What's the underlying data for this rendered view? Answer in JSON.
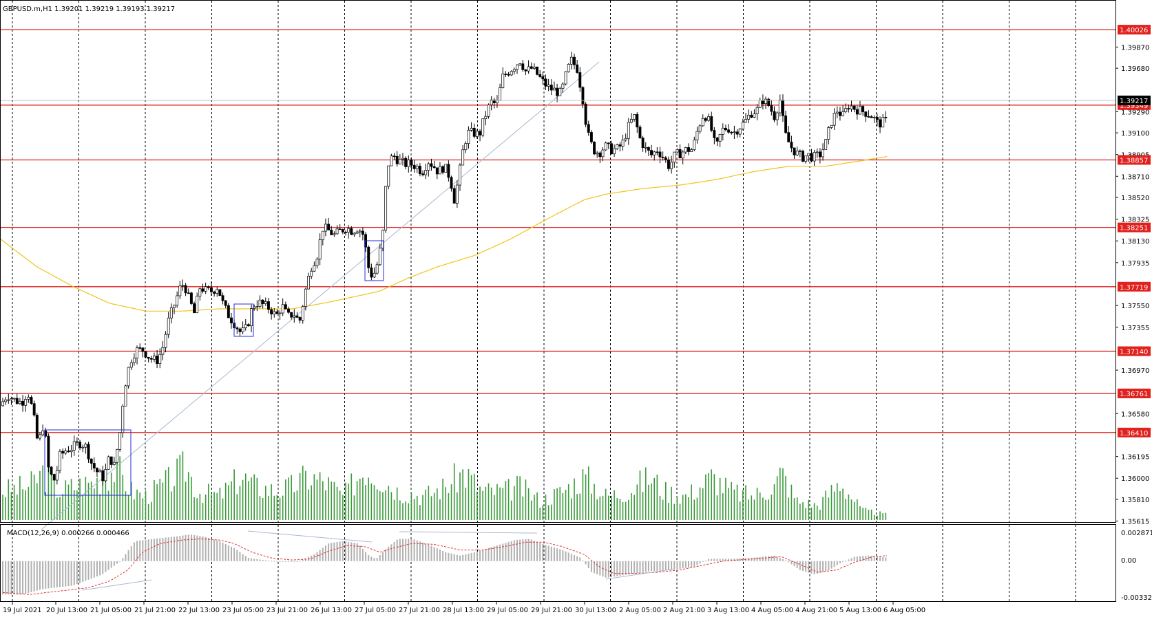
{
  "chart_data": {
    "type": "candlestick",
    "symbol_header": "GBPUSD.m,H1  1.39201 1.39219 1.39193 1.39217",
    "current_price": "1.39217",
    "price_ticks": [
      "1.39870",
      "1.39680",
      "1.39290",
      "1.39100",
      "1.38905",
      "1.38710",
      "1.38520",
      "1.38325",
      "1.38130",
      "1.37935",
      "1.37550",
      "1.37355",
      "1.36970",
      "1.36580",
      "1.36195",
      "1.36000",
      "1.35810",
      "1.35615"
    ],
    "horizontal_levels": [
      "1.40026",
      "1.39349",
      "1.38857",
      "1.38251",
      "1.37719",
      "1.37140",
      "1.36761",
      "1.36410"
    ],
    "x_labels": [
      "19 Jul 2021",
      "20 Jul 13:00",
      "21 Jul 05:00",
      "21 Jul 21:00",
      "22 Jul 13:00",
      "23 Jul 05:00",
      "23 Jul 21:00",
      "26 Jul 13:00",
      "27 Jul 05:00",
      "27 Jul 21:00",
      "28 Jul 13:00",
      "29 Jul 05:00",
      "29 Jul 21:00",
      "30 Jul 13:00",
      "2 Aug 05:00",
      "2 Aug 21:00",
      "3 Aug 13:00",
      "4 Aug 05:00",
      "4 Aug 21:00",
      "5 Aug 13:00",
      "6 Aug 05:00"
    ],
    "price_anchors": [
      [
        0,
        1.3665
      ],
      [
        10,
        1.3675
      ],
      [
        20,
        1.367
      ],
      [
        30,
        1.3668
      ],
      [
        38,
        1.3678
      ],
      [
        45,
        1.366
      ],
      [
        52,
        1.363
      ],
      [
        60,
        1.365
      ],
      [
        67,
        1.3605
      ],
      [
        75,
        1.3598
      ],
      [
        82,
        1.362
      ],
      [
        90,
        1.3625
      ],
      [
        100,
        1.3628
      ],
      [
        110,
        1.3632
      ],
      [
        118,
        1.3628
      ],
      [
        126,
        1.3612
      ],
      [
        134,
        1.3605
      ],
      [
        142,
        1.36
      ],
      [
        150,
        1.362
      ],
      [
        156,
        1.361
      ],
      [
        164,
        1.364
      ],
      [
        170,
        1.368
      ],
      [
        178,
        1.3705
      ],
      [
        186,
        1.3715
      ],
      [
        196,
        1.3715
      ],
      [
        205,
        1.3708
      ],
      [
        214,
        1.3705
      ],
      [
        222,
        1.3715
      ],
      [
        230,
        1.374
      ],
      [
        238,
        1.3755
      ],
      [
        246,
        1.377
      ],
      [
        252,
        1.3775
      ],
      [
        258,
        1.3762
      ],
      [
        266,
        1.3748
      ],
      [
        274,
        1.3772
      ],
      [
        282,
        1.3768
      ],
      [
        290,
        1.3768
      ],
      [
        298,
        1.3772
      ],
      [
        306,
        1.3755
      ],
      [
        314,
        1.3745
      ],
      [
        322,
        1.3738
      ],
      [
        330,
        1.373
      ],
      [
        338,
        1.3735
      ],
      [
        346,
        1.3755
      ],
      [
        354,
        1.3758
      ],
      [
        362,
        1.3755
      ],
      [
        370,
        1.3752
      ],
      [
        378,
        1.3745
      ],
      [
        386,
        1.3755
      ],
      [
        394,
        1.3745
      ],
      [
        402,
        1.3748
      ],
      [
        410,
        1.374
      ],
      [
        418,
        1.3768
      ],
      [
        426,
        1.379
      ],
      [
        434,
        1.38
      ],
      [
        442,
        1.3825
      ],
      [
        450,
        1.3822
      ],
      [
        458,
        1.3818
      ],
      [
        466,
        1.3822
      ],
      [
        474,
        1.3825
      ],
      [
        482,
        1.3822
      ],
      [
        490,
        1.3825
      ],
      [
        498,
        1.3818
      ],
      [
        504,
        1.379
      ],
      [
        510,
        1.378
      ],
      [
        518,
        1.3795
      ],
      [
        524,
        1.382
      ],
      [
        530,
        1.388
      ],
      [
        538,
        1.389
      ],
      [
        546,
        1.3885
      ],
      [
        554,
        1.3882
      ],
      [
        562,
        1.3882
      ],
      [
        570,
        1.388
      ],
      [
        578,
        1.3875
      ],
      [
        586,
        1.3885
      ],
      [
        594,
        1.388
      ],
      [
        600,
        1.3875
      ],
      [
        608,
        1.388
      ],
      [
        616,
        1.387
      ],
      [
        622,
        1.385
      ],
      [
        628,
        1.387
      ],
      [
        634,
        1.3895
      ],
      [
        640,
        1.391
      ],
      [
        648,
        1.391
      ],
      [
        656,
        1.3908
      ],
      [
        664,
        1.3925
      ],
      [
        672,
        1.3938
      ],
      [
        680,
        1.3935
      ],
      [
        688,
        1.396
      ],
      [
        696,
        1.3965
      ],
      [
        704,
        1.397
      ],
      [
        712,
        1.3975
      ],
      [
        720,
        1.3965
      ],
      [
        728,
        1.3968
      ],
      [
        736,
        1.3962
      ],
      [
        744,
        1.3955
      ],
      [
        752,
        1.395
      ],
      [
        760,
        1.3948
      ],
      [
        768,
        1.3945
      ],
      [
        776,
        1.3965
      ],
      [
        782,
        1.3975
      ],
      [
        790,
        1.3968
      ],
      [
        798,
        1.394
      ],
      [
        804,
        1.391
      ],
      [
        812,
        1.3895
      ],
      [
        820,
        1.3892
      ],
      [
        828,
        1.3898
      ],
      [
        836,
        1.3895
      ],
      [
        844,
        1.3895
      ],
      [
        852,
        1.39
      ],
      [
        860,
        1.3915
      ],
      [
        868,
        1.3925
      ],
      [
        876,
        1.3905
      ],
      [
        884,
        1.3895
      ],
      [
        892,
        1.389
      ],
      [
        900,
        1.3895
      ],
      [
        908,
        1.3888
      ],
      [
        916,
        1.388
      ],
      [
        924,
        1.389
      ],
      [
        932,
        1.3892
      ],
      [
        940,
        1.3895
      ],
      [
        948,
        1.3895
      ],
      [
        956,
        1.3915
      ],
      [
        964,
        1.3928
      ],
      [
        972,
        1.3918
      ],
      [
        980,
        1.3895
      ],
      [
        988,
        1.3912
      ],
      [
        996,
        1.3915
      ],
      [
        1004,
        1.391
      ],
      [
        1012,
        1.3915
      ],
      [
        1020,
        1.392
      ],
      [
        1028,
        1.3928
      ],
      [
        1036,
        1.393
      ],
      [
        1044,
        1.394
      ],
      [
        1052,
        1.3935
      ],
      [
        1060,
        1.3925
      ],
      [
        1068,
        1.394
      ],
      [
        1074,
        1.391
      ],
      [
        1082,
        1.3898
      ],
      [
        1090,
        1.3892
      ],
      [
        1098,
        1.3888
      ],
      [
        1106,
        1.389
      ],
      [
        1114,
        1.3888
      ],
      [
        1122,
        1.389
      ],
      [
        1130,
        1.39
      ],
      [
        1138,
        1.392
      ],
      [
        1146,
        1.393
      ],
      [
        1154,
        1.3925
      ],
      [
        1162,
        1.3935
      ],
      [
        1170,
        1.3932
      ],
      [
        1178,
        1.393
      ],
      [
        1186,
        1.3928
      ],
      [
        1194,
        1.3925
      ],
      [
        1202,
        1.3918
      ],
      [
        1210,
        1.392
      ],
      [
        1216,
        1.3921
      ]
    ],
    "ma_anchors": [
      [
        0,
        1.3815
      ],
      [
        50,
        1.379
      ],
      [
        100,
        1.3772
      ],
      [
        150,
        1.3757
      ],
      [
        200,
        1.375
      ],
      [
        250,
        1.375
      ],
      [
        300,
        1.3752
      ],
      [
        350,
        1.3752
      ],
      [
        400,
        1.3752
      ],
      [
        450,
        1.3758
      ],
      [
        500,
        1.3765
      ],
      [
        520,
        1.3768
      ],
      [
        560,
        1.378
      ],
      [
        600,
        1.379
      ],
      [
        650,
        1.38
      ],
      [
        700,
        1.3815
      ],
      [
        750,
        1.3833
      ],
      [
        800,
        1.385
      ],
      [
        830,
        1.3855
      ],
      [
        880,
        1.386
      ],
      [
        930,
        1.3863
      ],
      [
        980,
        1.3868
      ],
      [
        1030,
        1.3875
      ],
      [
        1080,
        1.388
      ],
      [
        1130,
        1.388
      ],
      [
        1180,
        1.3885
      ],
      [
        1216,
        1.3889
      ]
    ],
    "macd_label": "MACD(12,26,9) 0.000266 0.000466",
    "macd_ticks": [
      "0.002871",
      "0.00",
      "-0.00332"
    ],
    "macd_hist_anchors": [
      [
        0,
        -0.003
      ],
      [
        30,
        -0.003
      ],
      [
        60,
        -0.0025
      ],
      [
        100,
        -0.0022
      ],
      [
        140,
        -0.0012
      ],
      [
        165,
        0.0
      ],
      [
        185,
        0.0018
      ],
      [
        210,
        0.002
      ],
      [
        240,
        0.0022
      ],
      [
        260,
        0.0024
      ],
      [
        280,
        0.0022
      ],
      [
        300,
        0.0018
      ],
      [
        320,
        0.0012
      ],
      [
        340,
        0.0003
      ],
      [
        360,
        0.0001
      ],
      [
        380,
        0.0
      ],
      [
        410,
        0.0
      ],
      [
        430,
        0.0006
      ],
      [
        450,
        0.0016
      ],
      [
        470,
        0.0018
      ],
      [
        490,
        0.0016
      ],
      [
        505,
        0.0005
      ],
      [
        515,
        0.0002
      ],
      [
        530,
        0.0012
      ],
      [
        545,
        0.002
      ],
      [
        565,
        0.002
      ],
      [
        590,
        0.0014
      ],
      [
        610,
        0.0008
      ],
      [
        630,
        0.0005
      ],
      [
        650,
        0.0008
      ],
      [
        680,
        0.0014
      ],
      [
        705,
        0.0019
      ],
      [
        725,
        0.002
      ],
      [
        745,
        0.0015
      ],
      [
        770,
        0.001
      ],
      [
        795,
        0.0003
      ],
      [
        810,
        -0.001
      ],
      [
        830,
        -0.0015
      ],
      [
        860,
        -0.0012
      ],
      [
        890,
        -0.0009
      ],
      [
        920,
        -0.0008
      ],
      [
        950,
        -0.0005
      ],
      [
        970,
        0.0002
      ],
      [
        1000,
        0.0002
      ],
      [
        1030,
        0.0003
      ],
      [
        1060,
        0.0005
      ],
      [
        1075,
        0.0001
      ],
      [
        1095,
        -0.0008
      ],
      [
        1115,
        -0.0012
      ],
      [
        1135,
        -0.0008
      ],
      [
        1150,
        -0.0002
      ],
      [
        1170,
        0.0004
      ],
      [
        1190,
        0.0005
      ],
      [
        1216,
        0.0003
      ]
    ],
    "macd_signal_anchors": [
      [
        0,
        -0.0028
      ],
      [
        40,
        -0.003
      ],
      [
        80,
        -0.0027
      ],
      [
        120,
        -0.0024
      ],
      [
        150,
        -0.0018
      ],
      [
        175,
        -0.0008
      ],
      [
        195,
        0.0008
      ],
      [
        220,
        0.0016
      ],
      [
        250,
        0.0019
      ],
      [
        275,
        0.002
      ],
      [
        300,
        0.0019
      ],
      [
        320,
        0.0016
      ],
      [
        345,
        0.0008
      ],
      [
        370,
        0.0003
      ],
      [
        400,
        0.0001
      ],
      [
        425,
        0.0002
      ],
      [
        450,
        0.0009
      ],
      [
        475,
        0.0014
      ],
      [
        500,
        0.0013
      ],
      [
        520,
        0.0008
      ],
      [
        540,
        0.0012
      ],
      [
        565,
        0.0016
      ],
      [
        595,
        0.0015
      ],
      [
        630,
        0.001
      ],
      [
        660,
        0.001
      ],
      [
        690,
        0.0013
      ],
      [
        720,
        0.0017
      ],
      [
        745,
        0.0017
      ],
      [
        770,
        0.0013
      ],
      [
        800,
        0.0006
      ],
      [
        820,
        -0.0005
      ],
      [
        840,
        -0.0011
      ],
      [
        870,
        -0.0011
      ],
      [
        900,
        -0.001
      ],
      [
        930,
        -0.0008
      ],
      [
        960,
        -0.0004
      ],
      [
        990,
        0.0
      ],
      [
        1030,
        0.0002
      ],
      [
        1070,
        0.0004
      ],
      [
        1095,
        -0.0003
      ],
      [
        1120,
        -0.001
      ],
      [
        1145,
        -0.0008
      ],
      [
        1170,
        -0.0001
      ],
      [
        1195,
        0.0004
      ],
      [
        1216,
        0.0005
      ]
    ],
    "volume_anchors": [
      [
        0,
        0.3
      ],
      [
        40,
        0.35
      ],
      [
        60,
        0.5
      ],
      [
        80,
        0.3
      ],
      [
        100,
        0.35
      ],
      [
        130,
        0.4
      ],
      [
        160,
        0.55
      ],
      [
        180,
        0.3
      ],
      [
        200,
        0.25
      ],
      [
        230,
        0.4
      ],
      [
        255,
        0.55
      ],
      [
        270,
        0.3
      ],
      [
        300,
        0.25
      ],
      [
        330,
        0.45
      ],
      [
        350,
        0.35
      ],
      [
        380,
        0.3
      ],
      [
        400,
        0.35
      ],
      [
        420,
        0.45
      ],
      [
        445,
        0.4
      ],
      [
        470,
        0.25
      ],
      [
        500,
        0.55
      ],
      [
        520,
        0.45
      ],
      [
        545,
        0.3
      ],
      [
        580,
        0.25
      ],
      [
        610,
        0.35
      ],
      [
        635,
        0.5
      ],
      [
        660,
        0.3
      ],
      [
        690,
        0.3
      ],
      [
        710,
        0.35
      ],
      [
        740,
        0.2
      ],
      [
        770,
        0.3
      ],
      [
        800,
        0.45
      ],
      [
        830,
        0.25
      ],
      [
        860,
        0.3
      ],
      [
        890,
        0.45
      ],
      [
        910,
        0.3
      ],
      [
        940,
        0.25
      ],
      [
        975,
        0.45
      ],
      [
        1000,
        0.3
      ],
      [
        1030,
        0.25
      ],
      [
        1060,
        0.35
      ],
      [
        1070,
        0.5
      ],
      [
        1090,
        0.2
      ],
      [
        1120,
        0.15
      ],
      [
        1150,
        0.4
      ],
      [
        1180,
        0.1
      ],
      [
        1216,
        0.05
      ]
    ]
  }
}
